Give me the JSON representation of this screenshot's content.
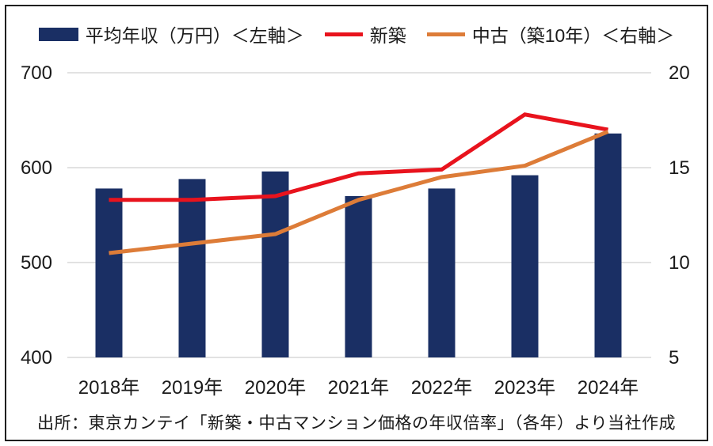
{
  "legend": {
    "bar_label": "平均年収（万円）＜左軸＞",
    "shinchiku_label": "新築",
    "chuko_label": "中古（築10年）＜右軸＞"
  },
  "source": "出所：東京カンテイ「新築・中古マンション価格の年収倍率」（各年）より当社作成",
  "colors": {
    "bar": "#1a2f64",
    "shinchiku_line": "#e8131d",
    "chuko_line": "#dd7c38",
    "gridline": "#d9d9d9",
    "text": "#1a1a1a",
    "border": "#1f1f1f"
  },
  "chart_data": {
    "type": "combo-bar-line",
    "title": "",
    "categories": [
      "2018年",
      "2019年",
      "2020年",
      "2021年",
      "2022年",
      "2023年",
      "2024年"
    ],
    "series": [
      {
        "name": "平均年収（万円）",
        "type": "bar",
        "axis": "left",
        "color": "#1a2f64",
        "values": [
          578,
          588,
          596,
          570,
          578,
          592,
          636
        ]
      },
      {
        "name": "新築",
        "type": "line",
        "axis": "right",
        "color": "#e8131d",
        "values": [
          13.3,
          13.3,
          13.5,
          14.7,
          14.9,
          17.8,
          17.0
        ]
      },
      {
        "name": "中古（築10年）",
        "type": "line",
        "axis": "right",
        "color": "#dd7c38",
        "values": [
          10.5,
          11.0,
          11.5,
          13.3,
          14.5,
          15.1,
          16.9
        ]
      }
    ],
    "left_axis": {
      "ticks": [
        400,
        500,
        600,
        700
      ],
      "range": [
        400,
        700
      ]
    },
    "right_axis": {
      "ticks": [
        5,
        10,
        15,
        20
      ],
      "range": [
        5,
        20
      ]
    },
    "grid": true,
    "legend_position": "top"
  }
}
